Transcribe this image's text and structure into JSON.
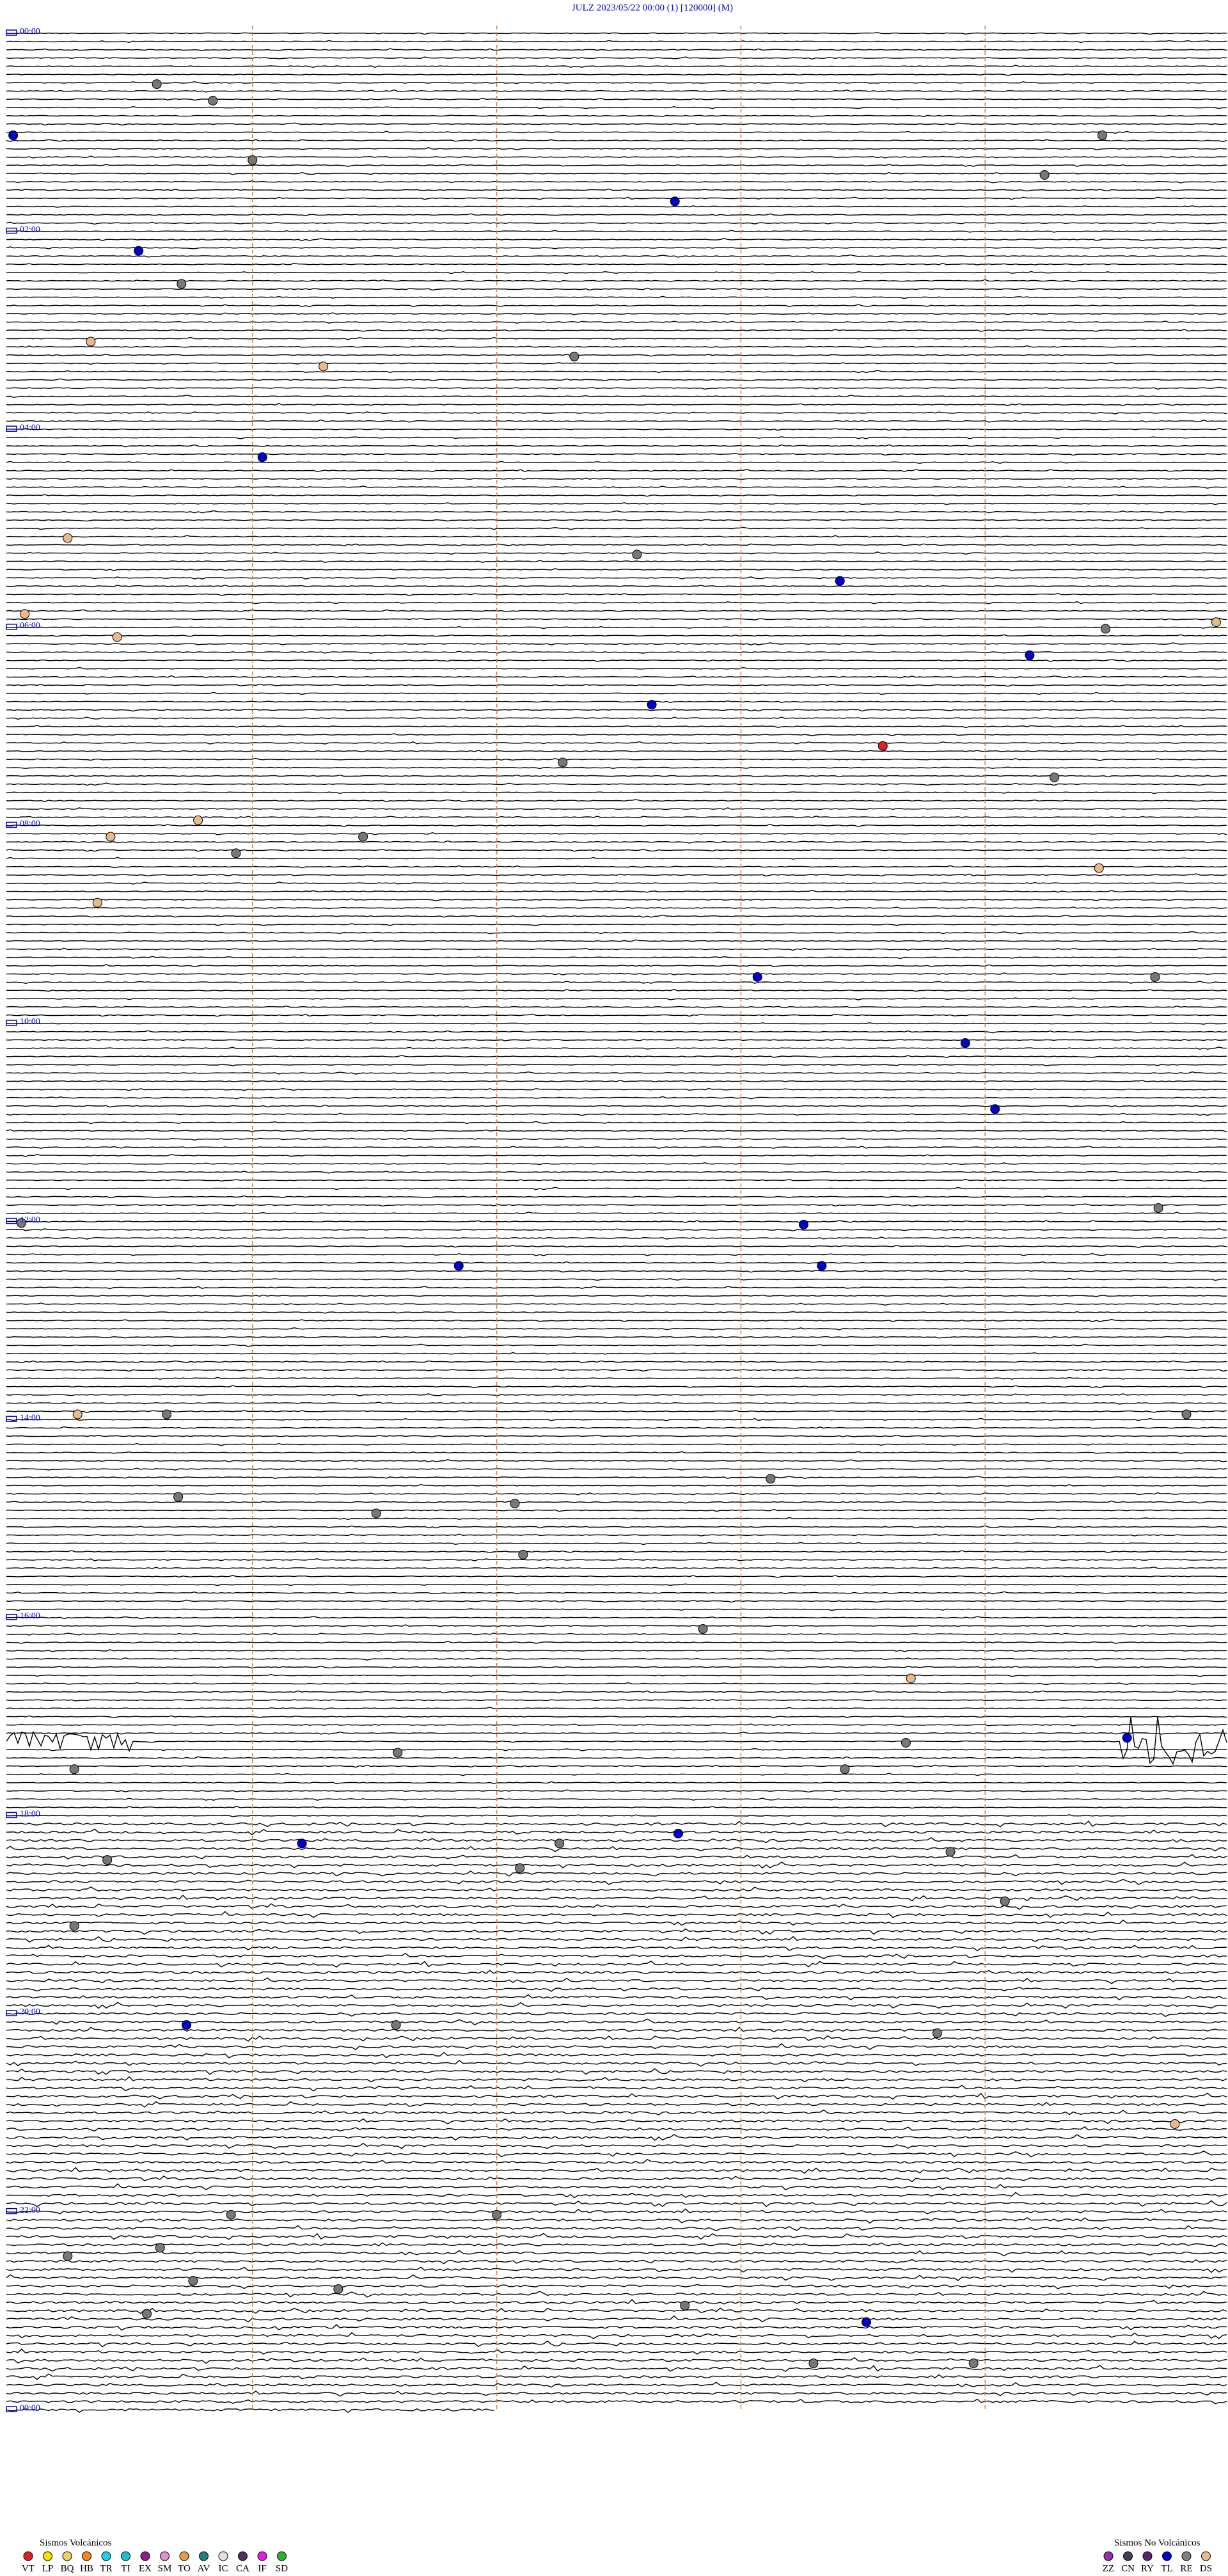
{
  "header": {
    "title": "JULZ     2023/05/22 00:00      (1)     [120000]  (M)"
  },
  "hour_labels": [
    "00:00",
    "02:00",
    "04:00",
    "06:00",
    "08:00",
    "10:00",
    "12:00",
    "14:00",
    "16:00",
    "18:00",
    "20:00",
    "22:00",
    "00:00"
  ],
  "legend": {
    "volcanic": {
      "title": "Sismos Volcánicos",
      "items": [
        {
          "label": "VT",
          "color": "#e02020"
        },
        {
          "label": "LP",
          "color": "#f5e000"
        },
        {
          "label": "BQ",
          "color": "#f0d060"
        },
        {
          "label": "HB",
          "color": "#f08a20"
        },
        {
          "label": "TR",
          "color": "#20d0e0"
        },
        {
          "label": "TI",
          "color": "#20c0d0"
        },
        {
          "label": "EX",
          "color": "#8a2090"
        },
        {
          "label": "SM",
          "color": "#e090d0"
        },
        {
          "label": "TO",
          "color": "#e0a050"
        },
        {
          "label": "AV",
          "color": "#208080"
        },
        {
          "label": "IC",
          "color": "#e0e0e0"
        },
        {
          "label": "CA",
          "color": "#503060"
        },
        {
          "label": "IF",
          "color": "#e020e0"
        },
        {
          "label": "SD",
          "color": "#30b030"
        }
      ]
    },
    "non_volcanic": {
      "title": "Sismos No Volcánicos",
      "items": [
        {
          "label": "ZZ",
          "color": "#9030b0"
        },
        {
          "label": "CN",
          "color": "#404050"
        },
        {
          "label": "RY",
          "color": "#602070"
        },
        {
          "label": "TL",
          "color": "#0000cc"
        },
        {
          "label": "RE",
          "color": "#808080"
        },
        {
          "label": "DS",
          "color": "#e8b98a"
        }
      ]
    }
  }
}
